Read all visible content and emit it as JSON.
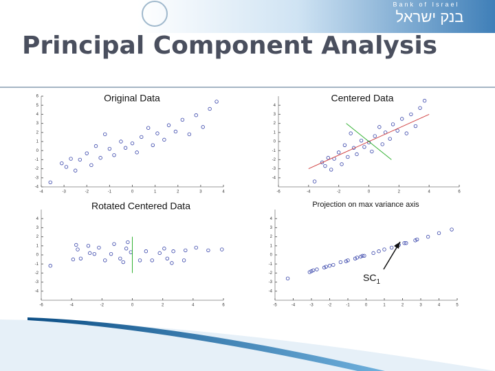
{
  "logo": {
    "english": "Bank of Israel",
    "hebrew": "בנק ישראל"
  },
  "title": "Principal Component Analysis",
  "chart_data": [
    {
      "type": "scatter",
      "title": "Original Data",
      "xlim": [
        -4,
        4
      ],
      "ylim": [
        -4,
        6
      ],
      "xticks": [
        -4,
        -3,
        -2,
        -1,
        0,
        1,
        2,
        3,
        4
      ],
      "yticks": [
        -4,
        -3,
        -2,
        -1,
        0,
        1,
        2,
        3,
        4,
        5,
        6
      ],
      "series": [
        {
          "color": "#3340a8",
          "mode": "markers",
          "x": [
            -3.6,
            -3.1,
            -2.9,
            -2.7,
            -2.5,
            -2.3,
            -2.0,
            -1.8,
            -1.6,
            -1.4,
            -1.2,
            -1.0,
            -0.8,
            -0.5,
            -0.3,
            0,
            0.2,
            0.4,
            0.7,
            0.9,
            1.1,
            1.4,
            1.6,
            1.9,
            2.2,
            2.5,
            2.8,
            3.1,
            3.4,
            3.7
          ],
          "y": [
            -3.5,
            -1.4,
            -1.8,
            -0.9,
            -2.2,
            -1.0,
            -0.3,
            -1.6,
            0.5,
            -0.8,
            1.8,
            0.2,
            -0.5,
            1.0,
            0.3,
            0.8,
            -0.2,
            1.5,
            2.5,
            0.6,
            1.9,
            1.2,
            2.8,
            2.1,
            3.4,
            1.8,
            3.9,
            2.6,
            4.6,
            5.4
          ]
        }
      ]
    },
    {
      "type": "scatter",
      "title": "Centered Data",
      "xlim": [
        -6,
        6
      ],
      "ylim": [
        -5,
        5
      ],
      "xticks": [
        -6,
        -4,
        -2,
        0,
        2,
        4,
        6
      ],
      "yticks": [
        -4,
        -3,
        -2,
        -1,
        0,
        1,
        2,
        3,
        4
      ],
      "series": [
        {
          "color": "#3340a8",
          "mode": "markers",
          "x": [
            -3.6,
            -3.1,
            -2.9,
            -2.7,
            -2.5,
            -2.3,
            -2.0,
            -1.8,
            -1.6,
            -1.4,
            -1.2,
            -1.0,
            -0.8,
            -0.5,
            -0.3,
            0,
            0.2,
            0.4,
            0.7,
            0.9,
            1.1,
            1.4,
            1.6,
            1.9,
            2.2,
            2.5,
            2.8,
            3.1,
            3.4,
            3.7
          ],
          "y": [
            -4.4,
            -2.3,
            -2.7,
            -1.8,
            -3.1,
            -1.9,
            -1.2,
            -2.5,
            -0.4,
            -1.7,
            0.9,
            -0.7,
            -1.4,
            0.1,
            -0.6,
            -0.1,
            -1.1,
            0.6,
            1.6,
            -0.3,
            1.0,
            0.3,
            1.9,
            1.2,
            2.5,
            0.9,
            3.0,
            1.7,
            3.7,
            4.5
          ]
        },
        {
          "color": "#d04040",
          "mode": "line",
          "x": [
            -4,
            4
          ],
          "y": [
            -3,
            3
          ]
        },
        {
          "color": "#30b030",
          "mode": "line",
          "x": [
            -1.5,
            1.5
          ],
          "y": [
            2,
            -2
          ]
        }
      ]
    },
    {
      "type": "scatter",
      "title": "Rotated Centered Data",
      "xlim": [
        -6,
        6
      ],
      "ylim": [
        -5,
        5
      ],
      "xticks": [
        -6,
        -4,
        -2,
        0,
        2,
        4,
        6
      ],
      "yticks": [
        -4,
        -3,
        -2,
        -1,
        0,
        1,
        2,
        3,
        4
      ],
      "series": [
        {
          "color": "#3340a8",
          "mode": "markers",
          "x": [
            -5.4,
            -3.7,
            -3.6,
            -2.9,
            -3.9,
            -2.8,
            -2.2,
            -3.4,
            -1.2,
            -2.5,
            -0.3,
            -1.4,
            -1.8,
            -0.4,
            -0.8,
            -0.1,
            -0.6,
            0.9,
            2.1,
            0.5,
            1.8,
            1.3,
            2.7,
            2.3,
            3.5,
            2.6,
            4.2,
            3.4,
            5.0,
            5.9
          ],
          "y": [
            -1.2,
            1.1,
            0.6,
            1.0,
            -0.5,
            0.2,
            0.8,
            -0.4,
            1.2,
            0.1,
            1.4,
            0.1,
            -0.6,
            0.7,
            -0.4,
            0.3,
            -0.8,
            0.4,
            0.7,
            -0.6,
            0.2,
            -0.6,
            0.4,
            -0.4,
            0.5,
            -0.9,
            0.8,
            -0.6,
            0.5,
            0.6
          ]
        },
        {
          "color": "#30b030",
          "mode": "line",
          "x": [
            0,
            0
          ],
          "y": [
            -2,
            2
          ]
        }
      ]
    },
    {
      "type": "scatter",
      "title": "Projection on max variance axis",
      "xlim": [
        -5,
        5
      ],
      "ylim": [
        -5,
        5
      ],
      "xticks": [
        -5,
        -4,
        -3,
        -2,
        -1,
        0,
        1,
        2,
        3,
        4,
        5
      ],
      "yticks": [
        -4,
        -3,
        -2,
        -1,
        0,
        1,
        2,
        3,
        4
      ],
      "annotation": {
        "text": "SC",
        "subscript": "1"
      },
      "series": [
        {
          "color": "#3340a8",
          "mode": "markers",
          "x": [
            -4.3,
            -3.0,
            -2.9,
            -2.3,
            -3.1,
            -2.2,
            -1.8,
            -2.7,
            -1.0,
            -2.0,
            -0.2,
            -1.1,
            -1.4,
            -0.3,
            -0.6,
            -0.1,
            -0.5,
            0.7,
            1.7,
            0.4,
            1.4,
            1.0,
            2.2,
            1.8,
            2.8,
            2.1,
            3.4,
            2.7,
            4.0,
            4.7
          ],
          "y": [
            -2.6,
            -1.8,
            -1.7,
            -1.4,
            -1.9,
            -1.3,
            -1.1,
            -1.6,
            -0.6,
            -1.2,
            -0.1,
            -0.7,
            -0.8,
            -0.2,
            -0.4,
            -0.1,
            -0.3,
            0.4,
            1.0,
            0.2,
            0.8,
            0.6,
            1.3,
            1.1,
            1.7,
            1.3,
            2.0,
            1.6,
            2.4,
            2.8
          ]
        }
      ]
    }
  ]
}
